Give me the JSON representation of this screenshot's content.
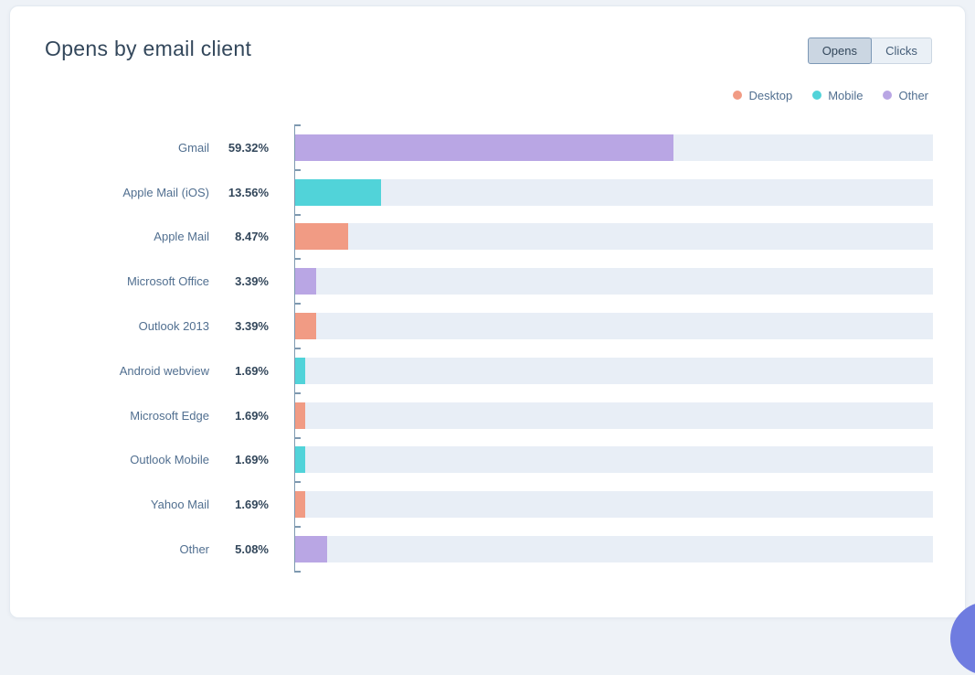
{
  "card": {
    "title": "Opens by email client"
  },
  "toggle": {
    "options": [
      {
        "label": "Opens",
        "active": true
      },
      {
        "label": "Clicks",
        "active": false
      }
    ]
  },
  "legend": {
    "items": [
      {
        "label": "Desktop",
        "color": "#f19b84"
      },
      {
        "label": "Mobile",
        "color": "#51d3d9"
      },
      {
        "label": "Other",
        "color": "#b9a6e4"
      }
    ]
  },
  "chart_data": {
    "type": "bar",
    "orientation": "horizontal",
    "title": "Opens by email client",
    "xlabel": "",
    "ylabel": "",
    "xlim": [
      0,
      100
    ],
    "unit": "%",
    "grid": false,
    "legend_position": "top-right",
    "categories": [
      "Gmail",
      "Apple Mail (iOS)",
      "Apple Mail",
      "Microsoft Office",
      "Outlook 2013",
      "Android webview",
      "Microsoft Edge",
      "Outlook Mobile",
      "Yahoo Mail",
      "Other"
    ],
    "values": [
      59.32,
      13.56,
      8.47,
      3.39,
      3.39,
      1.69,
      1.69,
      1.69,
      1.69,
      5.08
    ],
    "value_labels": [
      "59.32%",
      "13.56%",
      "8.47%",
      "3.39%",
      "3.39%",
      "1.69%",
      "1.69%",
      "1.69%",
      "1.69%",
      "5.08%"
    ],
    "series_of_bar": [
      "Other",
      "Mobile",
      "Desktop",
      "Other",
      "Desktop",
      "Mobile",
      "Desktop",
      "Mobile",
      "Desktop",
      "Other"
    ]
  },
  "colors": {
    "desktop": "#f19b84",
    "mobile": "#51d3d9",
    "other": "#b9a6e4",
    "track": "#e8eef6",
    "axis": "#7e99b0",
    "chat_bubble": "#6f7ce0"
  }
}
